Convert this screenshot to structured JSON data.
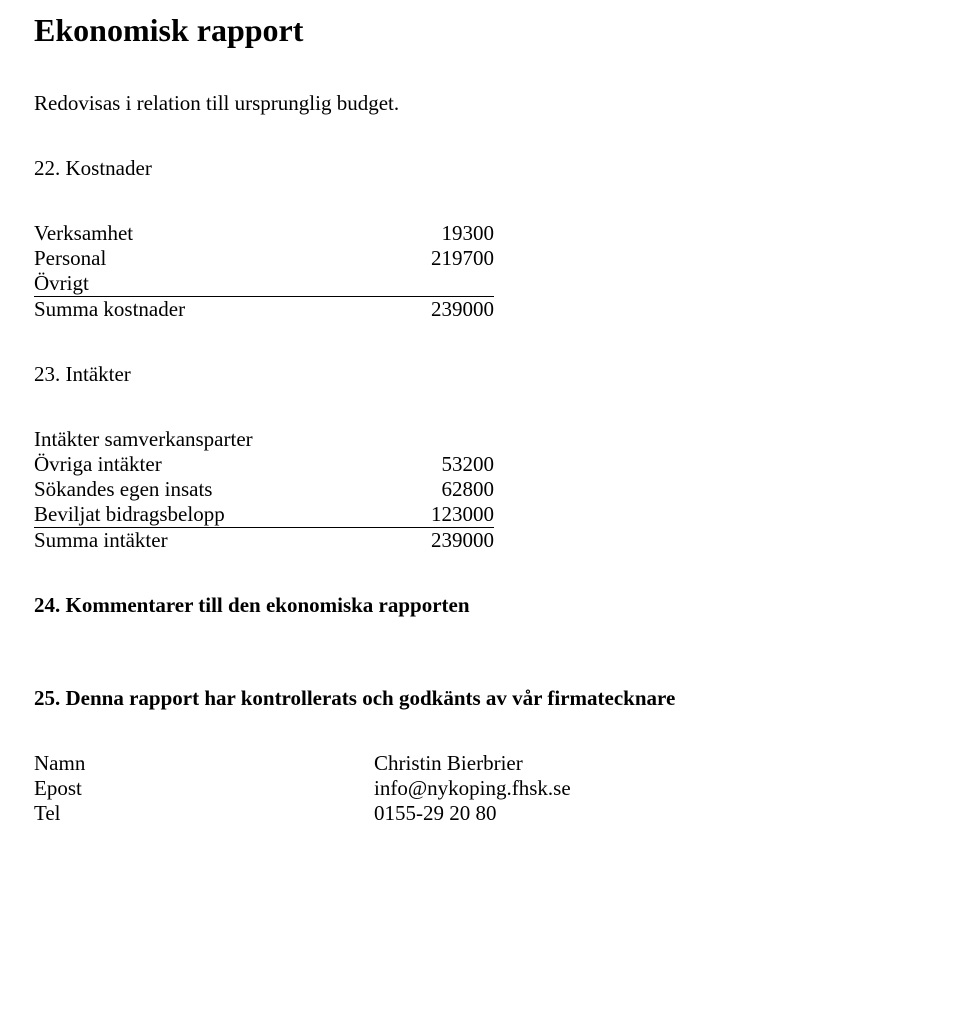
{
  "title": "Ekonomisk rapport",
  "intro": "Redovisas i relation till ursprunglig budget.",
  "kostnader": {
    "heading": "22. Kostnader",
    "rows": {
      "verksamhet": {
        "label": "Verksamhet",
        "value": "19300"
      },
      "personal": {
        "label": "Personal",
        "value": "219700"
      },
      "ovrigt": {
        "label": "Övrigt",
        "value": ""
      },
      "summa": {
        "label": "Summa kostnader",
        "value": "239000"
      }
    }
  },
  "intakter": {
    "heading": "23. Intäkter",
    "rows": {
      "samverkan": {
        "label": "Intäkter samverkansparter",
        "value": ""
      },
      "ovriga": {
        "label": "Övriga intäkter",
        "value": "53200"
      },
      "egen": {
        "label": "Sökandes egen insats",
        "value": "62800"
      },
      "beviljat": {
        "label": "Beviljat bidragsbelopp",
        "value": "123000"
      },
      "summa": {
        "label": "Summa intäkter",
        "value": "239000"
      }
    }
  },
  "kommentarer_heading": "24. Kommentarer till den ekonomiska rapporten",
  "godkannande_heading": "25. Denna rapport har kontrollerats och godkänts av vår firmatecknare",
  "contact": {
    "namn": {
      "label": "Namn",
      "value": "Christin Bierbrier"
    },
    "epost": {
      "label": "Epost",
      "value": "info@nykoping.fhsk.se"
    },
    "tel": {
      "label": "Tel",
      "value": "0155-29 20 80"
    }
  }
}
